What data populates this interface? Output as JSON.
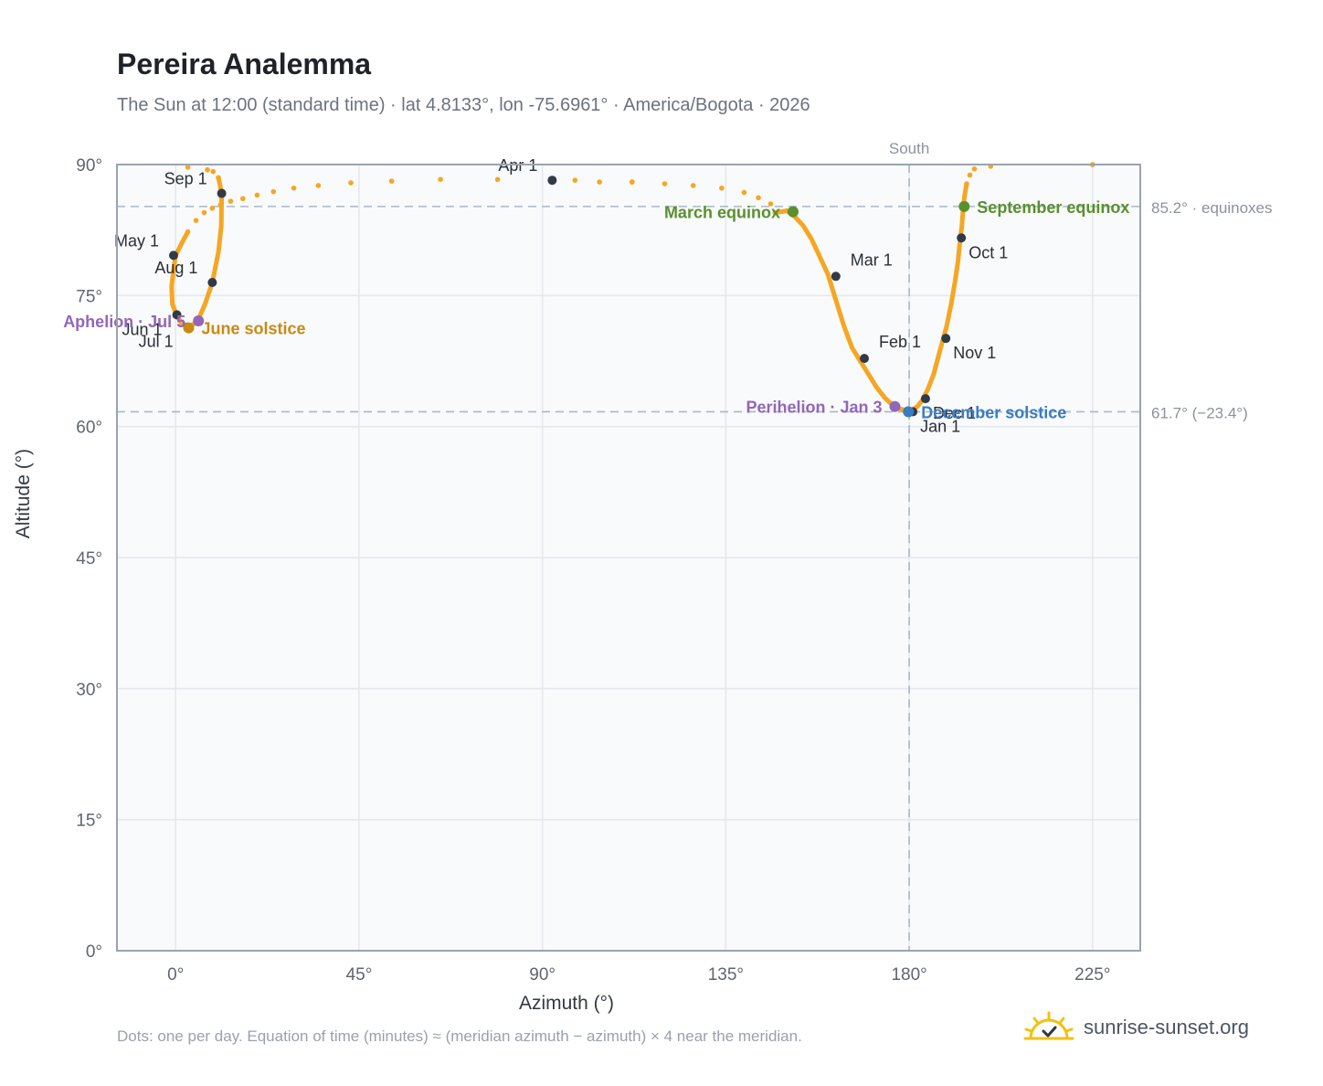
{
  "title": "Pereira Analemma",
  "subtitle": "The Sun at 12:00 (standard time) · lat 4.8133°, lon -75.6961° · America/Bogota · 2026",
  "footnote": "Dots: one per day. Equation of time (minutes) ≈ (meridian azimuth − azimuth) × 4 near the meridian.",
  "brand": {
    "name": "sunrise-sunset.org",
    "icon": "sun-logo-icon"
  },
  "colors": {
    "curve": "#f5a623",
    "month_marker": "#333a45",
    "equinox": "#5a8f2e",
    "june_solstice": "#c98a12",
    "december_solstice": "#3a7cc0",
    "apsis": "#9266b8",
    "plot_bg": "#f8fafc",
    "grid": "#e4e7ec",
    "frame": "#9aa3b1",
    "reference_line": "#a9b8c6"
  },
  "chart_data": {
    "type": "scatter",
    "title": "Pereira Analemma",
    "xlabel": "Azimuth (°)",
    "ylabel": "Altitude (°)",
    "xlim": [
      -14.4,
      236.7
    ],
    "ylim": [
      0,
      90
    ],
    "x_ticks": [
      0,
      45,
      90,
      135,
      180,
      225
    ],
    "x_tick_labels": [
      "0°",
      "45°",
      "90°",
      "135°",
      "180°",
      "225°"
    ],
    "y_ticks": [
      0,
      15,
      30,
      45,
      60,
      75,
      90
    ],
    "y_tick_labels": [
      "0°",
      "15°",
      "30°",
      "45°",
      "60°",
      "75°",
      "90°"
    ],
    "grid": true,
    "series": [
      {
        "style": "daily-dots",
        "path": [
          [
            180.5,
            61.8
          ],
          [
            182.0,
            62.3
          ],
          [
            183.2,
            63.0
          ],
          [
            184.6,
            64.3
          ],
          [
            186.0,
            66.0
          ],
          [
            187.6,
            68.8
          ],
          [
            189.2,
            71.5
          ],
          [
            190.3,
            74.0
          ],
          [
            191.2,
            76.5
          ],
          [
            192.0,
            79.0
          ],
          [
            192.3,
            80.5
          ],
          [
            192.6,
            81.8
          ],
          [
            192.9,
            82.8
          ],
          [
            193.1,
            84.0
          ],
          [
            193.3,
            85.2
          ],
          [
            193.6,
            86.5
          ],
          [
            194.1,
            87.8
          ],
          [
            194.9,
            88.8
          ],
          [
            196.0,
            89.5
          ],
          [
            200.0,
            89.8
          ],
          [
            225.0,
            90.0
          ]
        ],
        "sparse_path": [
          [
            225.0,
            90.0
          ],
          [
            112.0,
            88.0
          ],
          [
            104.0,
            88.0
          ],
          [
            98.0,
            88.2
          ],
          [
            92.4,
            88.2
          ],
          [
            79.0,
            88.3
          ],
          [
            65.0,
            88.3
          ],
          [
            53.0,
            88.1
          ],
          [
            43.0,
            87.9
          ],
          [
            35.0,
            87.6
          ],
          [
            29.0,
            87.3
          ],
          [
            24.0,
            86.9
          ],
          [
            20.0,
            86.5
          ],
          [
            16.5,
            86.1
          ],
          [
            13.5,
            85.8
          ],
          [
            11.0,
            85.4
          ],
          [
            9.0,
            85.0
          ],
          [
            7.0,
            84.5
          ],
          [
            5.0,
            83.6
          ],
          [
            3.0,
            82.3
          ],
          [
            1.5,
            81.0
          ],
          [
            0.0,
            79.6
          ],
          [
            -0.5,
            78.0
          ],
          [
            -1.0,
            76.0
          ],
          [
            -0.8,
            74.0
          ],
          [
            0.2,
            72.8
          ],
          [
            1.5,
            71.8
          ],
          [
            3.2,
            71.4
          ],
          [
            5.3,
            72.0
          ],
          [
            7.2,
            74.0
          ],
          [
            9.0,
            76.5
          ],
          [
            10.5,
            80.0
          ],
          [
            11.2,
            83.0
          ],
          [
            11.3,
            86.7
          ],
          [
            10.5,
            88.5
          ],
          [
            9.2,
            89.2
          ],
          [
            7.8,
            89.4
          ],
          [
            3.0,
            89.7
          ]
        ],
        "sparse_path_2": [
          [
            147.0,
            84.5
          ],
          [
            150.0,
            84.7
          ],
          [
            152.0,
            84.0
          ],
          [
            154.0,
            83.0
          ],
          [
            156.0,
            81.5
          ],
          [
            158.0,
            79.5
          ],
          [
            160.0,
            77.5
          ],
          [
            162.0,
            74.5
          ],
          [
            164.0,
            71.5
          ],
          [
            166.0,
            69.0
          ],
          [
            168.0,
            67.5
          ],
          [
            170.0,
            66.0
          ],
          [
            172.0,
            64.5
          ],
          [
            174.0,
            63.3
          ],
          [
            176.0,
            62.4
          ],
          [
            178.0,
            62.0
          ],
          [
            180.0,
            61.8
          ]
        ],
        "sparse_path_3": [
          [
            150.0,
            84.7
          ],
          [
            146.0,
            85.5
          ],
          [
            143.0,
            86.2
          ],
          [
            139.5,
            86.8
          ],
          [
            134.0,
            87.3
          ],
          [
            127.0,
            87.6
          ],
          [
            120.0,
            87.8
          ],
          [
            112.0,
            88.0
          ]
        ]
      }
    ],
    "month_markers": [
      {
        "label": "Jan 1",
        "x": 180.9,
        "y": 61.7,
        "anchor": "below-right"
      },
      {
        "label": "Feb 1",
        "x": 169.0,
        "y": 67.8,
        "anchor": "above-right"
      },
      {
        "label": "Mar 1",
        "x": 162.0,
        "y": 77.2,
        "anchor": "above-right"
      },
      {
        "label": "Apr 1",
        "x": 92.4,
        "y": 88.2,
        "anchor": "above-left"
      },
      {
        "label": "May 1",
        "x": -0.5,
        "y": 79.6,
        "anchor": "above-left"
      },
      {
        "label": "Jun 1",
        "x": 0.3,
        "y": 72.8,
        "anchor": "below-left"
      },
      {
        "label": "Jul 1",
        "x": 3.0,
        "y": 71.4,
        "anchor": "below-left"
      },
      {
        "label": "Aug 1",
        "x": 9.0,
        "y": 76.5,
        "anchor": "above-left"
      },
      {
        "label": "Sep 1",
        "x": 11.3,
        "y": 86.7,
        "anchor": "above-left"
      },
      {
        "label": "Oct 1",
        "x": 192.8,
        "y": 81.6,
        "anchor": "below-right"
      },
      {
        "label": "Nov 1",
        "x": 189.0,
        "y": 70.1,
        "anchor": "below-right"
      },
      {
        "label": "Dec 1",
        "x": 184.0,
        "y": 63.2,
        "anchor": "below-right"
      }
    ],
    "special_points": [
      {
        "label": "March equinox",
        "x": 151.5,
        "y": 84.6,
        "color_key": "equinox",
        "anchor": "left"
      },
      {
        "label": "September equinox",
        "x": 193.5,
        "y": 85.2,
        "color_key": "equinox",
        "anchor": "right"
      },
      {
        "label": "June solstice",
        "x": 3.2,
        "y": 71.3,
        "color_key": "june_solstice",
        "anchor": "right"
      },
      {
        "label": "December solstice",
        "x": 179.8,
        "y": 61.7,
        "color_key": "december_solstice",
        "anchor": "right"
      },
      {
        "label": "Perihelion · Jan 3",
        "x": 176.5,
        "y": 62.3,
        "color_key": "apsis",
        "anchor": "left"
      },
      {
        "label": "Aphelion · Jul 5",
        "x": 5.6,
        "y": 72.1,
        "color_key": "apsis",
        "anchor": "left"
      }
    ],
    "reference_lines": [
      {
        "orientation": "horizontal",
        "value": 85.2,
        "label": "85.2° · equinoxes"
      },
      {
        "orientation": "horizontal",
        "value": 61.7,
        "label": "61.7° (−23.4°)"
      },
      {
        "orientation": "vertical",
        "value": 180,
        "label": "South"
      }
    ]
  }
}
